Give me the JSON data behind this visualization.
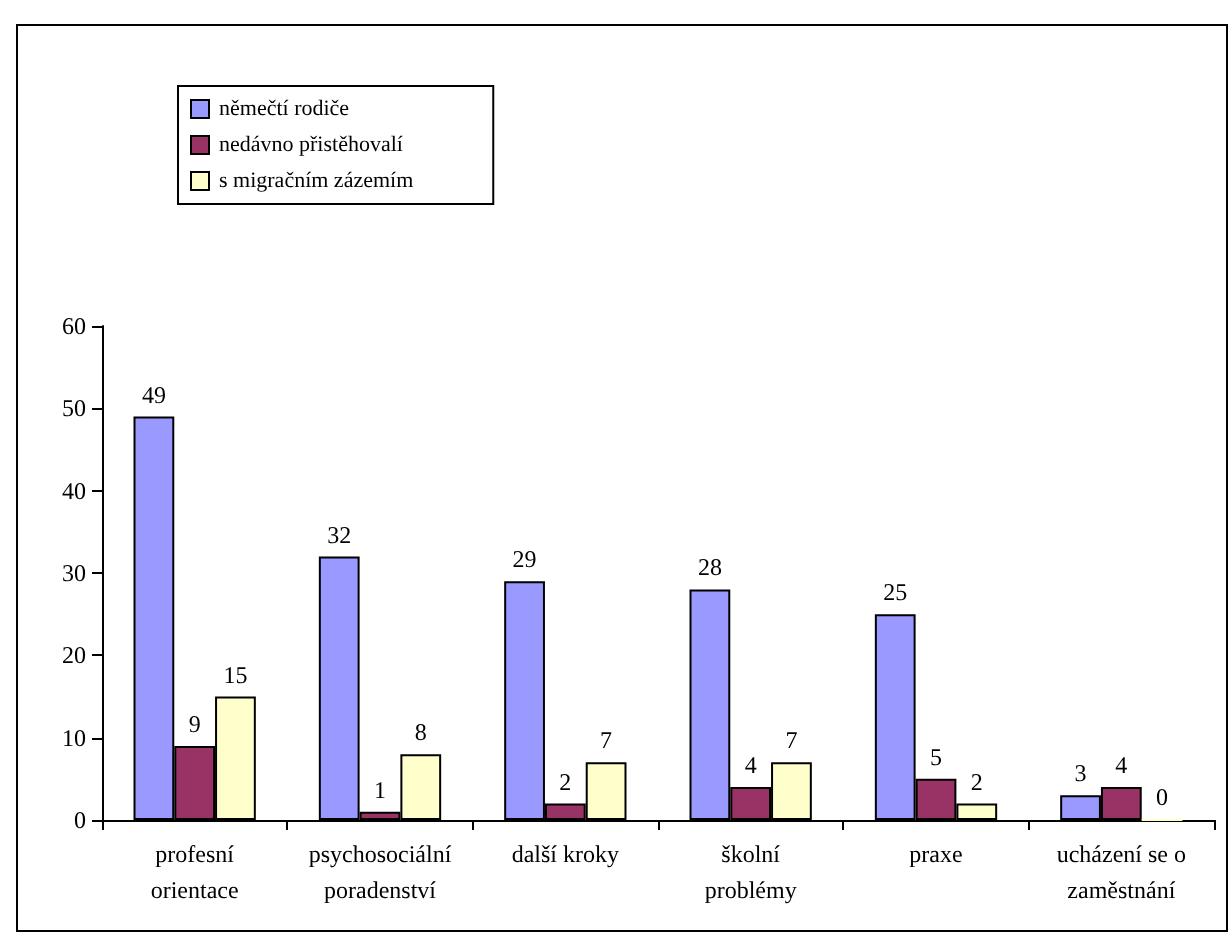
{
  "chart_data": {
    "type": "bar",
    "categories": [
      "profesní\norientace",
      "psychosociální\nporadenství",
      "další kroky",
      "školní\nproblémy",
      "praxe",
      "ucházení se o\nzaměstnání"
    ],
    "series": [
      {
        "name": "němečtí rodiče",
        "color": "#9999ff",
        "values": [
          49,
          32,
          29,
          28,
          25,
          3
        ]
      },
      {
        "name": "nedávno přistěhovalí",
        "color": "#993366",
        "values": [
          9,
          1,
          2,
          4,
          5,
          4
        ]
      },
      {
        "name": "s migračním zázemím",
        "color": "#ffffcc",
        "values": [
          15,
          8,
          7,
          7,
          2,
          0
        ]
      }
    ],
    "ylim": [
      0,
      60
    ],
    "yticks": [
      0,
      10,
      20,
      30,
      40,
      50,
      60
    ],
    "grid": false,
    "legend": "top left",
    "data_labels": true
  }
}
